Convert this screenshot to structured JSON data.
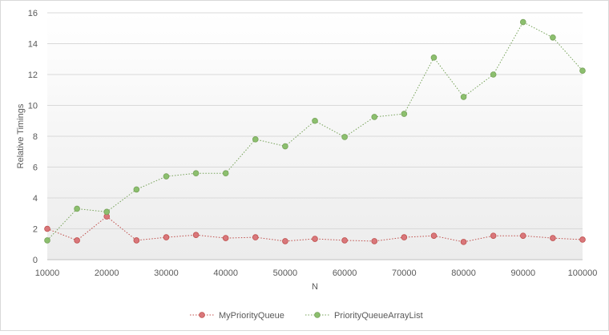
{
  "chart_data": {
    "type": "line",
    "title": "",
    "xlabel": "N",
    "ylabel": "Relative Timings",
    "x": [
      10000,
      15000,
      20000,
      25000,
      30000,
      35000,
      40000,
      45000,
      50000,
      55000,
      60000,
      65000,
      70000,
      75000,
      80000,
      85000,
      90000,
      95000,
      100000
    ],
    "x_ticks": [
      10000,
      20000,
      30000,
      40000,
      50000,
      60000,
      70000,
      80000,
      90000,
      100000
    ],
    "y_ticks": [
      0,
      2,
      4,
      6,
      8,
      10,
      12,
      14,
      16
    ],
    "xlim": [
      10000,
      100000
    ],
    "ylim": [
      0,
      16
    ],
    "grid": "horizontal",
    "legend_position": "bottom",
    "series": [
      {
        "name": "MyPriorityQueue",
        "color": "#c0504d",
        "marker_fill": "#d9777b",
        "values": [
          2.0,
          1.25,
          2.8,
          1.25,
          1.45,
          1.6,
          1.4,
          1.45,
          1.2,
          1.35,
          1.25,
          1.2,
          1.45,
          1.55,
          1.15,
          1.55,
          1.55,
          1.4,
          1.3
        ]
      },
      {
        "name": "PriorityQueueArrayList",
        "color": "#77a35a",
        "marker_fill": "#8cbf6e",
        "values": [
          1.25,
          3.3,
          3.1,
          4.55,
          5.4,
          5.6,
          5.6,
          7.8,
          7.35,
          9.0,
          7.95,
          9.25,
          9.45,
          13.1,
          10.55,
          12.0,
          15.4,
          14.4,
          12.25
        ]
      }
    ]
  }
}
